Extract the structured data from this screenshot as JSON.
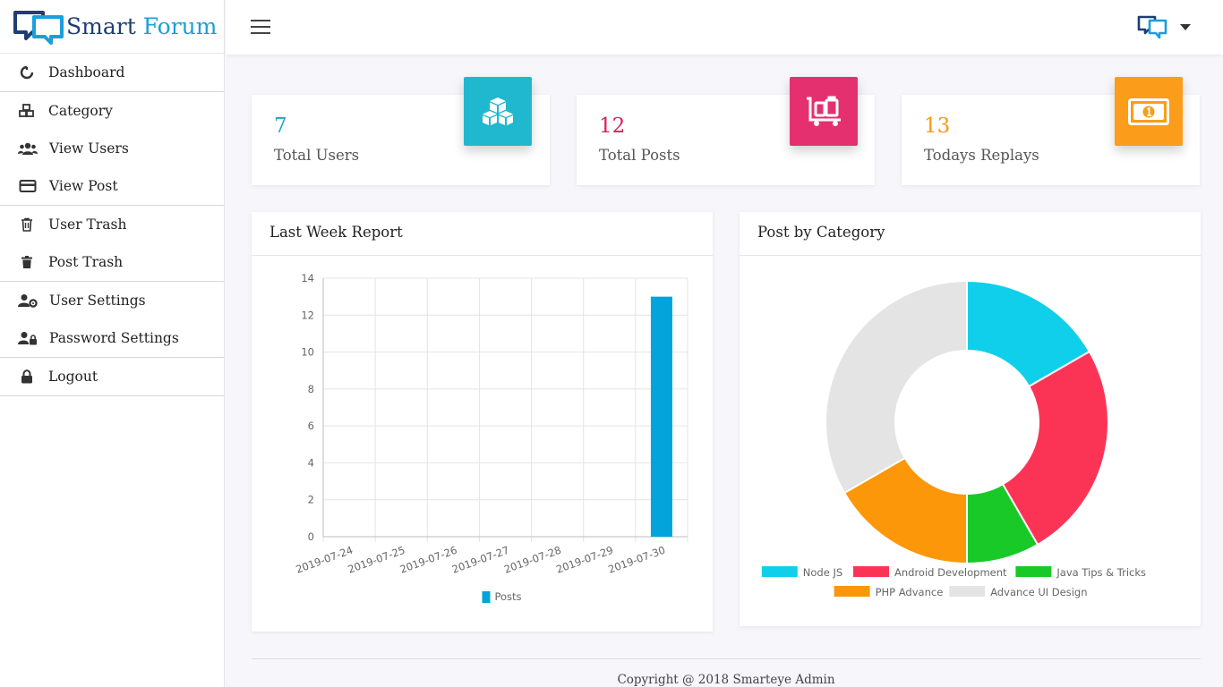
{
  "brand": {
    "name_part1": "Smart",
    "name_part2": "Forum"
  },
  "sidebar": {
    "items": [
      {
        "label": "Dashboard",
        "icon": "spinner-icon"
      },
      {
        "label": "Category",
        "icon": "cubes-icon"
      },
      {
        "label": "View Users",
        "icon": "users-icon"
      },
      {
        "label": "View Post",
        "icon": "card-icon"
      },
      {
        "label": "User Trash",
        "icon": "trash-outline-icon"
      },
      {
        "label": "Post Trash",
        "icon": "trash-icon"
      },
      {
        "label": "User Settings",
        "icon": "user-cog-icon"
      },
      {
        "label": "Password Settings",
        "icon": "user-lock-icon"
      },
      {
        "label": "Logout",
        "icon": "lock-icon"
      }
    ]
  },
  "stats": [
    {
      "value": "7",
      "label": "Total Users",
      "color": "#19a8c4",
      "badge_color": "#1fb8cf",
      "icon": "cubes-icon"
    },
    {
      "value": "12",
      "label": "Total Posts",
      "color": "#dc1f5d",
      "badge_color": "#e5306f",
      "icon": "luggage-cart-icon"
    },
    {
      "value": "13",
      "label": "Todays Replays",
      "color": "#f59a0e",
      "badge_color": "#fb9c1a",
      "icon": "money-bill-icon"
    }
  ],
  "chart_data": [
    {
      "type": "bar",
      "title": "Last Week Report",
      "categories": [
        "2019-07-24",
        "2019-07-25",
        "2019-07-26",
        "2019-07-27",
        "2019-07-28",
        "2019-07-29",
        "2019-07-30"
      ],
      "series": [
        {
          "name": "Posts",
          "values": [
            0,
            0,
            0,
            0,
            0,
            0,
            13
          ],
          "color": "#03a3db"
        }
      ],
      "ylim": [
        0,
        14
      ],
      "yticks": [
        0,
        2,
        4,
        6,
        8,
        10,
        12,
        14
      ],
      "grid": true,
      "legend": "bottom"
    },
    {
      "type": "pie",
      "title": "Post by Category",
      "donut": true,
      "labels": [
        "Node JS",
        "Android Development",
        "Java Tips & Tricks",
        "PHP Advance",
        "Advance UI Design"
      ],
      "values": [
        2,
        3,
        1,
        2,
        4
      ],
      "colors": [
        "#0fcfeb",
        "#fb3456",
        "#18c928",
        "#fb9708",
        "#e4e4e4"
      ],
      "legend": "bottom"
    }
  ],
  "footer": {
    "text": "Copyright @ 2018 Smarteye Admin"
  }
}
